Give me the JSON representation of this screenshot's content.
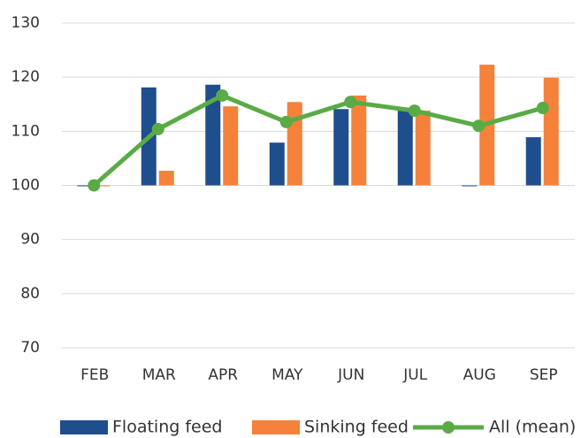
{
  "chart_data": {
    "type": "bar-line",
    "categories": [
      "FEB",
      "MAR",
      "APR",
      "MAY",
      "JUN",
      "JUL",
      "AUG",
      "SEP"
    ],
    "series": [
      {
        "name": "Floating feed",
        "type": "bar",
        "color": "#1f4e8c",
        "values": [
          100,
          118.1,
          118.6,
          107.9,
          114.1,
          113.8,
          99.9,
          108.9
        ]
      },
      {
        "name": "Sinking feed",
        "type": "bar",
        "color": "#f5813a",
        "values": [
          100,
          102.7,
          114.6,
          115.4,
          116.6,
          113.8,
          122.3,
          119.9
        ]
      },
      {
        "name": "All (mean)",
        "type": "line",
        "color": "#5aab46",
        "values": [
          100,
          110.4,
          116.6,
          111.7,
          115.4,
          113.8,
          111.0,
          114.3
        ]
      }
    ],
    "bar_baseline": 100,
    "ylim": [
      70,
      130
    ],
    "yticks": [
      70,
      80,
      90,
      100,
      110,
      120,
      130
    ],
    "grid": true,
    "legend": "bottom"
  }
}
